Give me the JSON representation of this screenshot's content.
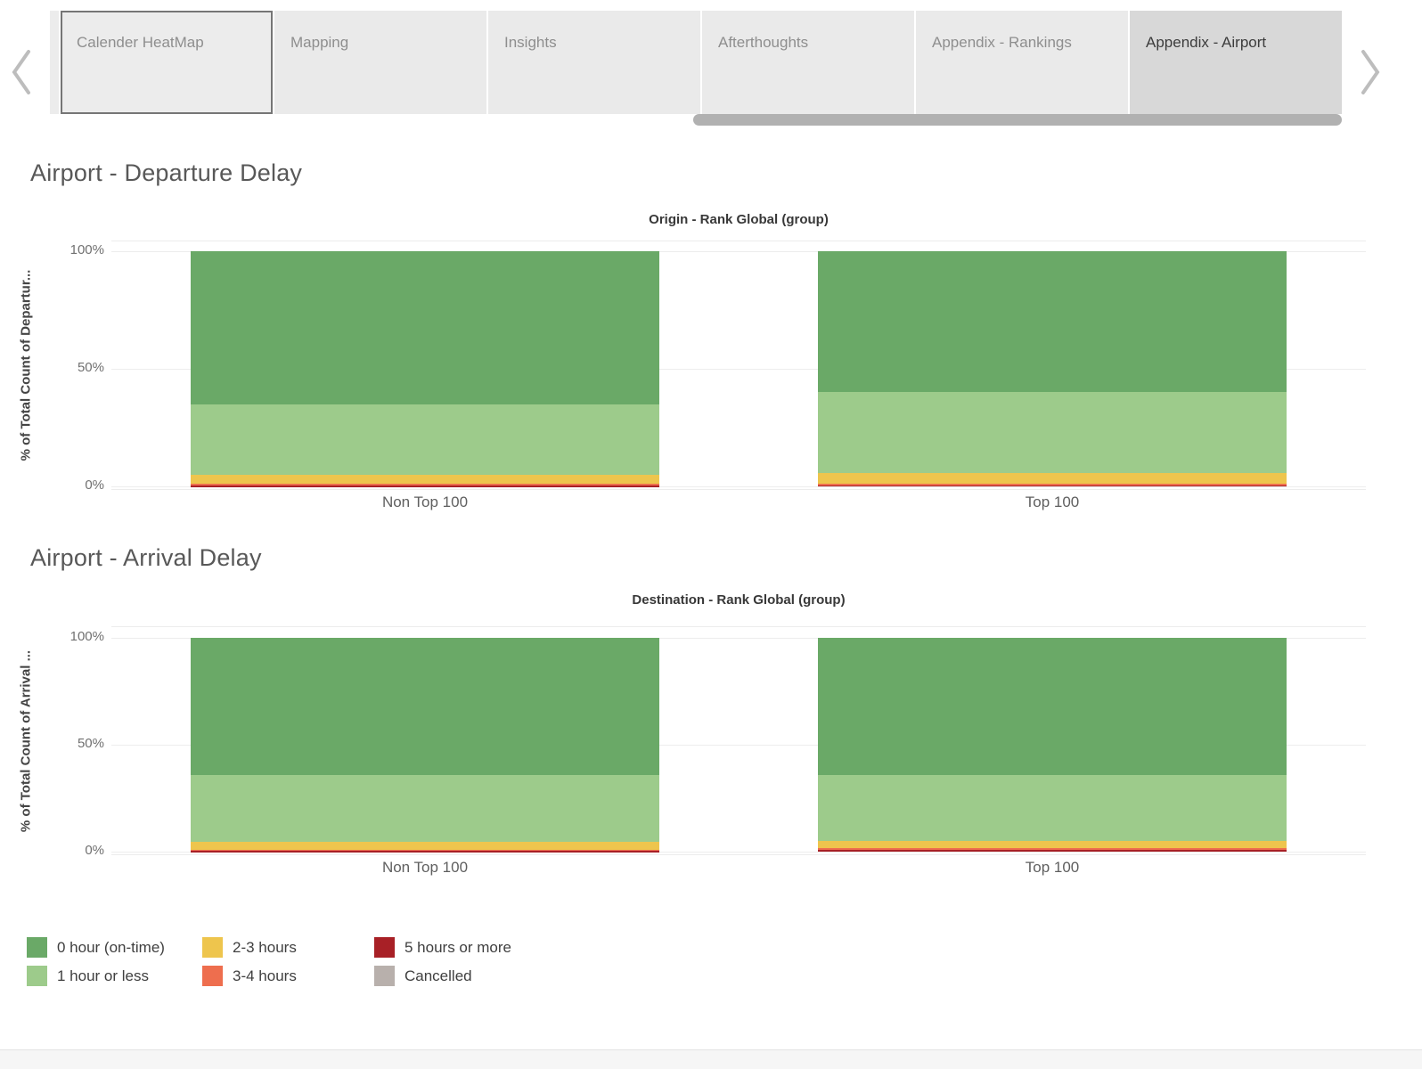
{
  "tab_bar": {
    "tabs": [
      {
        "label": "Calender HeatMap",
        "state": "focused"
      },
      {
        "label": "Mapping",
        "state": "normal"
      },
      {
        "label": "Insights",
        "state": "normal"
      },
      {
        "label": "Afterthoughts",
        "state": "normal"
      },
      {
        "label": "Appendix - Rankings",
        "state": "normal"
      },
      {
        "label": "Appendix - Airport",
        "state": "selected"
      }
    ],
    "left_icon": "chevron-left",
    "right_icon": "chevron-right"
  },
  "legend": {
    "items": [
      {
        "label": "0 hour (on-time)",
        "color": "#6aa967"
      },
      {
        "label": "1 hour or less",
        "color": "#9dcb8b"
      },
      {
        "label": "2-3 hours",
        "color": "#eec54d"
      },
      {
        "label": "3-4 hours",
        "color": "#ee6e4e"
      },
      {
        "label": "5 hours or more",
        "color": "#a82026"
      },
      {
        "label": "Cancelled",
        "color": "#b8b0ac"
      }
    ]
  },
  "chart_data": [
    {
      "type": "bar",
      "stacked": true,
      "normalized": "percent",
      "title": "Airport - Departure Delay",
      "column_header": "Origin - Rank Global (group)",
      "categories": [
        "Non Top 100",
        "Top 100"
      ],
      "series": [
        {
          "name": "0 hour (on-time)",
          "color": "#6aa967",
          "values": [
            65,
            60
          ]
        },
        {
          "name": "1 hour or less",
          "color": "#9dcb8b",
          "values": [
            30,
            34.5
          ]
        },
        {
          "name": "2-3 hours",
          "color": "#eec54d",
          "values": [
            4,
            4.2
          ]
        },
        {
          "name": "3-4 hours",
          "color": "#ee6e4e",
          "values": [
            0.7,
            0.9
          ]
        },
        {
          "name": "5 hours or more",
          "color": "#a82026",
          "values": [
            0.3,
            0.4
          ]
        },
        {
          "name": "Cancelled",
          "color": "#b8b0ac",
          "values": [
            0,
            0
          ]
        }
      ],
      "ylabel": "% of Total Count of Departur...",
      "yticks": [
        "100%",
        "50%",
        "0%"
      ],
      "ylim": [
        0,
        100
      ],
      "grid": true,
      "legend_position": "bottom"
    },
    {
      "type": "bar",
      "stacked": true,
      "normalized": "percent",
      "title": "Airport - Arrival Delay",
      "column_header": "Destination - Rank Global (group)",
      "categories": [
        "Non Top 100",
        "Top 100"
      ],
      "series": [
        {
          "name": "0 hour (on-time)",
          "color": "#6aa967",
          "values": [
            64,
            64
          ]
        },
        {
          "name": "1 hour or less",
          "color": "#9dcb8b",
          "values": [
            31.5,
            31
          ]
        },
        {
          "name": "2-3 hours",
          "color": "#eec54d",
          "values": [
            3.5,
            3.2
          ]
        },
        {
          "name": "3-4 hours",
          "color": "#ee6e4e",
          "values": [
            0.7,
            1.0
          ]
        },
        {
          "name": "5 hours or more",
          "color": "#a82026",
          "values": [
            0.3,
            0.8
          ]
        },
        {
          "name": "Cancelled",
          "color": "#b8b0ac",
          "values": [
            0,
            0
          ]
        }
      ],
      "ylabel": "% of Total Count of Arrival ...",
      "yticks": [
        "100%",
        "50%",
        "0%"
      ],
      "ylim": [
        0,
        100
      ],
      "grid": true,
      "legend_position": "bottom"
    }
  ]
}
